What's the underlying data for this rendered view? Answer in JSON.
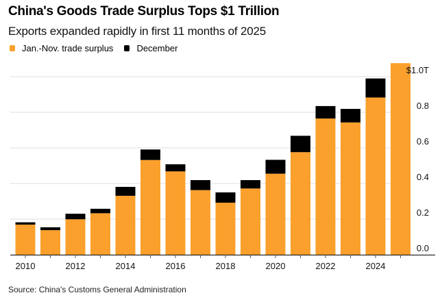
{
  "header": {
    "title": "China's Goods Trade Surplus Tops $1 Trillion",
    "subtitle": "Exports expanded rapidly in first 11 months of 2025"
  },
  "legend": [
    {
      "label": "Jan.-Nov. trade surplus",
      "color": "#fba02c"
    },
    {
      "label": "December",
      "color": "#000000"
    }
  ],
  "footer": {
    "source": "Source: China's Customs General Administration"
  },
  "chart_data": {
    "type": "bar",
    "stacked": true,
    "title": "China's Goods Trade Surplus Tops $1 Trillion",
    "subtitle": "Exports expanded rapidly in first 11 months of 2025",
    "xlabel": "",
    "ylabel": "",
    "categories": [
      2010,
      2011,
      2012,
      2013,
      2014,
      2015,
      2016,
      2017,
      2018,
      2019,
      2020,
      2021,
      2022,
      2023,
      2024,
      2025
    ],
    "x_tick_labels": [
      "2010",
      "",
      "2012",
      "",
      "2014",
      "",
      "2016",
      "",
      "2018",
      "",
      "2020",
      "",
      "2022",
      "",
      "2024",
      ""
    ],
    "series": [
      {
        "name": "Jan.-Nov. trade surplus",
        "color": "#fba02c",
        "values": [
          0.169,
          0.138,
          0.199,
          0.233,
          0.331,
          0.532,
          0.468,
          0.363,
          0.292,
          0.372,
          0.455,
          0.576,
          0.765,
          0.743,
          0.883,
          1.076
        ]
      },
      {
        "name": "December",
        "color": "#000000",
        "values": [
          0.013,
          0.016,
          0.031,
          0.025,
          0.05,
          0.059,
          0.04,
          0.056,
          0.058,
          0.047,
          0.078,
          0.092,
          0.07,
          0.076,
          0.107,
          null
        ]
      }
    ],
    "ylim": [
      0,
      1.0
    ],
    "y_ticks": [
      0.0,
      0.2,
      0.4,
      0.6,
      0.8,
      1.0
    ],
    "y_tick_labels": [
      "0.0",
      "0.2",
      "0.4",
      "0.6",
      "0.8",
      "$1.0T"
    ],
    "y_axis_position": "right",
    "grid": true,
    "legend_position": "top-left"
  }
}
